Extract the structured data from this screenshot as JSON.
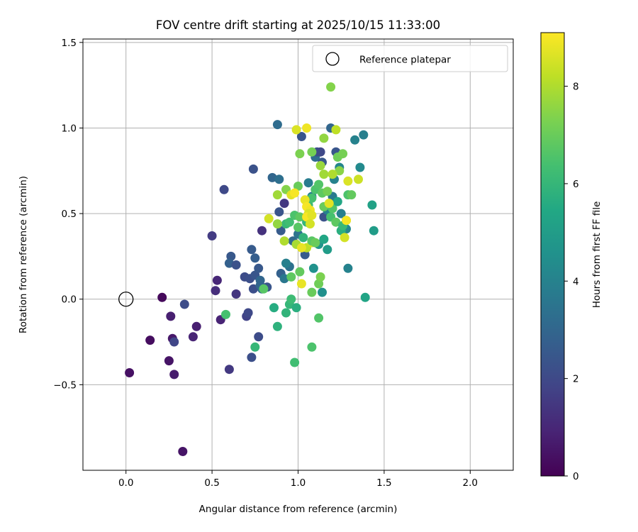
{
  "chart_data": {
    "type": "scatter",
    "title": "FOV centre drift starting at 2025/10/15 11:33:00",
    "xlabel": "Angular distance from reference (arcmin)",
    "ylabel": "Rotation from reference (arcmin)",
    "xlim": [
      -0.25,
      2.25
    ],
    "ylim": [
      -1.0,
      1.52
    ],
    "xticks": [
      0.0,
      0.5,
      1.0,
      1.5,
      2.0
    ],
    "xtick_labels": [
      "0.0",
      "0.5",
      "1.0",
      "1.5",
      "2.0"
    ],
    "yticks": [
      -0.5,
      0.0,
      0.5,
      1.0,
      1.5
    ],
    "ytick_labels": [
      "−0.5",
      "0.0",
      "0.5",
      "1.0",
      "1.5"
    ],
    "grid": true,
    "legend": {
      "placement": "top-right",
      "entries": [
        "Reference platepar"
      ]
    },
    "reference_point": {
      "x": 0.0,
      "y": 0.0
    },
    "colorbar": {
      "label": "Hours from first FF file",
      "range": [
        0,
        9.1
      ],
      "ticks": [
        0,
        2,
        4,
        6,
        8
      ],
      "tick_labels": [
        "0",
        "2",
        "4",
        "6",
        "8"
      ],
      "colormap": "viridis"
    },
    "points": [
      [
        0.21,
        0.01,
        0.2
      ],
      [
        0.14,
        -0.24,
        0.3
      ],
      [
        0.02,
        -0.43,
        0.4
      ],
      [
        0.25,
        -0.36,
        0.5
      ],
      [
        0.27,
        -0.23,
        0.6
      ],
      [
        0.28,
        -0.44,
        0.7
      ],
      [
        0.33,
        -0.89,
        0.5
      ],
      [
        0.26,
        -0.1,
        0.8
      ],
      [
        0.39,
        -0.22,
        0.9
      ],
      [
        0.41,
        -0.16,
        0.8
      ],
      [
        0.55,
        -0.12,
        0.9
      ],
      [
        0.53,
        0.11,
        1.0
      ],
      [
        0.52,
        0.05,
        1.2
      ],
      [
        0.64,
        0.03,
        1.4
      ],
      [
        0.28,
        -0.25,
        1.9
      ],
      [
        0.34,
        -0.03,
        2.1
      ],
      [
        0.5,
        0.37,
        1.6
      ],
      [
        0.6,
        -0.41,
        1.5
      ],
      [
        0.7,
        -0.1,
        1.8
      ],
      [
        0.71,
        -0.08,
        2.0
      ],
      [
        0.73,
        -0.34,
        2.2
      ],
      [
        0.77,
        -0.22,
        2.1
      ],
      [
        0.57,
        0.64,
        2.0
      ],
      [
        0.74,
        0.76,
        2.3
      ],
      [
        0.61,
        0.25,
        2.5
      ],
      [
        0.6,
        0.21,
        2.8
      ],
      [
        0.64,
        0.2,
        2.3
      ],
      [
        0.69,
        0.13,
        2.1
      ],
      [
        0.72,
        0.12,
        2.2
      ],
      [
        0.75,
        0.14,
        2.4
      ],
      [
        0.73,
        0.29,
        2.6
      ],
      [
        0.75,
        0.24,
        2.7
      ],
      [
        0.77,
        0.18,
        2.5
      ],
      [
        0.74,
        0.06,
        2.2
      ],
      [
        0.78,
        0.08,
        2.9
      ],
      [
        0.78,
        0.11,
        3.0
      ],
      [
        0.79,
        0.06,
        3.1
      ],
      [
        0.82,
        0.07,
        2.4
      ],
      [
        0.79,
        0.4,
        1.3
      ],
      [
        0.88,
        1.02,
        3.2
      ],
      [
        0.85,
        0.71,
        3.0
      ],
      [
        0.89,
        0.7,
        3.3
      ],
      [
        0.89,
        0.51,
        2.4
      ],
      [
        0.92,
        0.56,
        1.5
      ],
      [
        0.9,
        0.4,
        2.6
      ],
      [
        0.9,
        0.15,
        2.8
      ],
      [
        0.92,
        0.12,
        3.6
      ],
      [
        0.95,
        0.19,
        3.4
      ],
      [
        0.93,
        0.21,
        3.9
      ],
      [
        0.97,
        0.34,
        3.1
      ],
      [
        1.0,
        0.38,
        3.5
      ],
      [
        1.02,
        0.95,
        2.4
      ],
      [
        1.04,
        0.26,
        2.6
      ],
      [
        1.06,
        0.68,
        3.8
      ],
      [
        1.08,
        0.6,
        3.9
      ],
      [
        1.1,
        0.83,
        3.2
      ],
      [
        1.11,
        0.86,
        2.2
      ],
      [
        1.13,
        0.86,
        2.0
      ],
      [
        1.14,
        0.8,
        2.5
      ],
      [
        1.15,
        0.48,
        2.3
      ],
      [
        1.17,
        0.52,
        4.0
      ],
      [
        1.19,
        1.0,
        3.0
      ],
      [
        1.2,
        0.6,
        3.7
      ],
      [
        1.21,
        0.7,
        4.0
      ],
      [
        1.22,
        0.86,
        2.4
      ],
      [
        1.24,
        0.77,
        4.1
      ],
      [
        1.25,
        0.5,
        3.9
      ],
      [
        1.28,
        0.41,
        4.2
      ],
      [
        1.29,
        0.18,
        4.0
      ],
      [
        1.33,
        0.93,
        4.0
      ],
      [
        1.36,
        0.77,
        4.3
      ],
      [
        1.38,
        0.96,
        3.9
      ],
      [
        1.44,
        0.4,
        5.0
      ],
      [
        1.43,
        0.55,
        5.2
      ],
      [
        1.39,
        0.01,
        5.3
      ],
      [
        1.14,
        0.04,
        4.5
      ],
      [
        1.09,
        0.18,
        4.6
      ],
      [
        1.12,
        0.32,
        4.7
      ],
      [
        1.17,
        0.29,
        5.0
      ],
      [
        1.15,
        0.35,
        5.4
      ],
      [
        0.86,
        -0.05,
        5.6
      ],
      [
        0.88,
        -0.16,
        5.8
      ],
      [
        0.93,
        -0.08,
        5.9
      ],
      [
        0.95,
        -0.03,
        6.0
      ],
      [
        0.99,
        -0.05,
        5.7
      ],
      [
        0.96,
        0.0,
        6.2
      ],
      [
        0.98,
        -0.37,
        6.3
      ],
      [
        1.08,
        -0.28,
        6.5
      ],
      [
        1.12,
        -0.11,
        6.6
      ],
      [
        0.75,
        -0.28,
        6.0
      ],
      [
        0.58,
        -0.09,
        6.4
      ],
      [
        0.8,
        0.06,
        6.7
      ],
      [
        0.96,
        0.13,
        6.8
      ],
      [
        1.01,
        0.16,
        6.9
      ],
      [
        1.08,
        0.04,
        7.0
      ],
      [
        1.12,
        0.09,
        7.1
      ],
      [
        1.13,
        0.13,
        7.3
      ],
      [
        0.93,
        0.44,
        6.1
      ],
      [
        0.95,
        0.45,
        6.3
      ],
      [
        0.98,
        0.49,
        6.5
      ],
      [
        1.0,
        0.42,
        6.7
      ],
      [
        1.01,
        0.48,
        6.8
      ],
      [
        1.03,
        0.36,
        5.9
      ],
      [
        1.05,
        0.45,
        6.0
      ],
      [
        1.06,
        0.55,
        6.2
      ],
      [
        1.08,
        0.59,
        6.4
      ],
      [
        1.1,
        0.64,
        6.5
      ],
      [
        1.12,
        0.67,
        6.6
      ],
      [
        1.14,
        0.62,
        6.8
      ],
      [
        1.15,
        0.54,
        7.0
      ],
      [
        1.17,
        0.63,
        7.2
      ],
      [
        1.19,
        0.48,
        6.4
      ],
      [
        1.2,
        0.53,
        6.6
      ],
      [
        1.22,
        0.45,
        6.8
      ],
      [
        1.23,
        0.57,
        5.4
      ],
      [
        1.25,
        0.4,
        5.7
      ],
      [
        1.26,
        0.43,
        6.1
      ],
      [
        1.28,
        0.46,
        6.3
      ],
      [
        1.29,
        0.61,
        6.5
      ],
      [
        1.31,
        0.61,
        6.9
      ],
      [
        1.23,
        0.83,
        7.1
      ],
      [
        1.26,
        0.85,
        7.2
      ],
      [
        1.24,
        0.75,
        7.5
      ],
      [
        1.19,
        1.24,
        7.4
      ],
      [
        1.15,
        0.94,
        7.6
      ],
      [
        1.13,
        0.78,
        7.7
      ],
      [
        1.15,
        0.73,
        7.8
      ],
      [
        1.2,
        0.73,
        8.0
      ],
      [
        1.22,
        0.99,
        8.2
      ],
      [
        1.01,
        0.85,
        7.3
      ],
      [
        1.08,
        0.86,
        7.2
      ],
      [
        1.0,
        0.66,
        7.0
      ],
      [
        0.93,
        0.64,
        7.4
      ],
      [
        0.88,
        0.61,
        7.8
      ],
      [
        0.88,
        0.44,
        7.6
      ],
      [
        0.92,
        0.34,
        8.0
      ],
      [
        0.99,
        0.32,
        7.9
      ],
      [
        1.05,
        0.3,
        8.2
      ],
      [
        1.08,
        0.33,
        8.4
      ],
      [
        1.02,
        0.3,
        8.8
      ],
      [
        0.99,
        0.99,
        8.6
      ],
      [
        1.05,
        1.0,
        8.9
      ],
      [
        0.96,
        0.61,
        8.7
      ],
      [
        0.98,
        0.62,
        9.0
      ],
      [
        1.04,
        0.58,
        8.8
      ],
      [
        1.05,
        0.54,
        9.0
      ],
      [
        1.07,
        0.52,
        8.9
      ],
      [
        1.06,
        0.5,
        8.6
      ],
      [
        1.05,
        0.48,
        9.0
      ],
      [
        1.08,
        0.49,
        8.7
      ],
      [
        1.07,
        0.44,
        8.5
      ],
      [
        0.83,
        0.47,
        8.5
      ],
      [
        1.02,
        0.09,
        8.8
      ],
      [
        1.18,
        0.56,
        8.7
      ],
      [
        1.27,
        0.36,
        8.5
      ],
      [
        1.28,
        0.46,
        9.0
      ],
      [
        1.29,
        0.69,
        8.6
      ],
      [
        1.35,
        0.7,
        8.4
      ],
      [
        1.08,
        0.34,
        6.7
      ],
      [
        1.1,
        0.33,
        7.0
      ]
    ]
  }
}
